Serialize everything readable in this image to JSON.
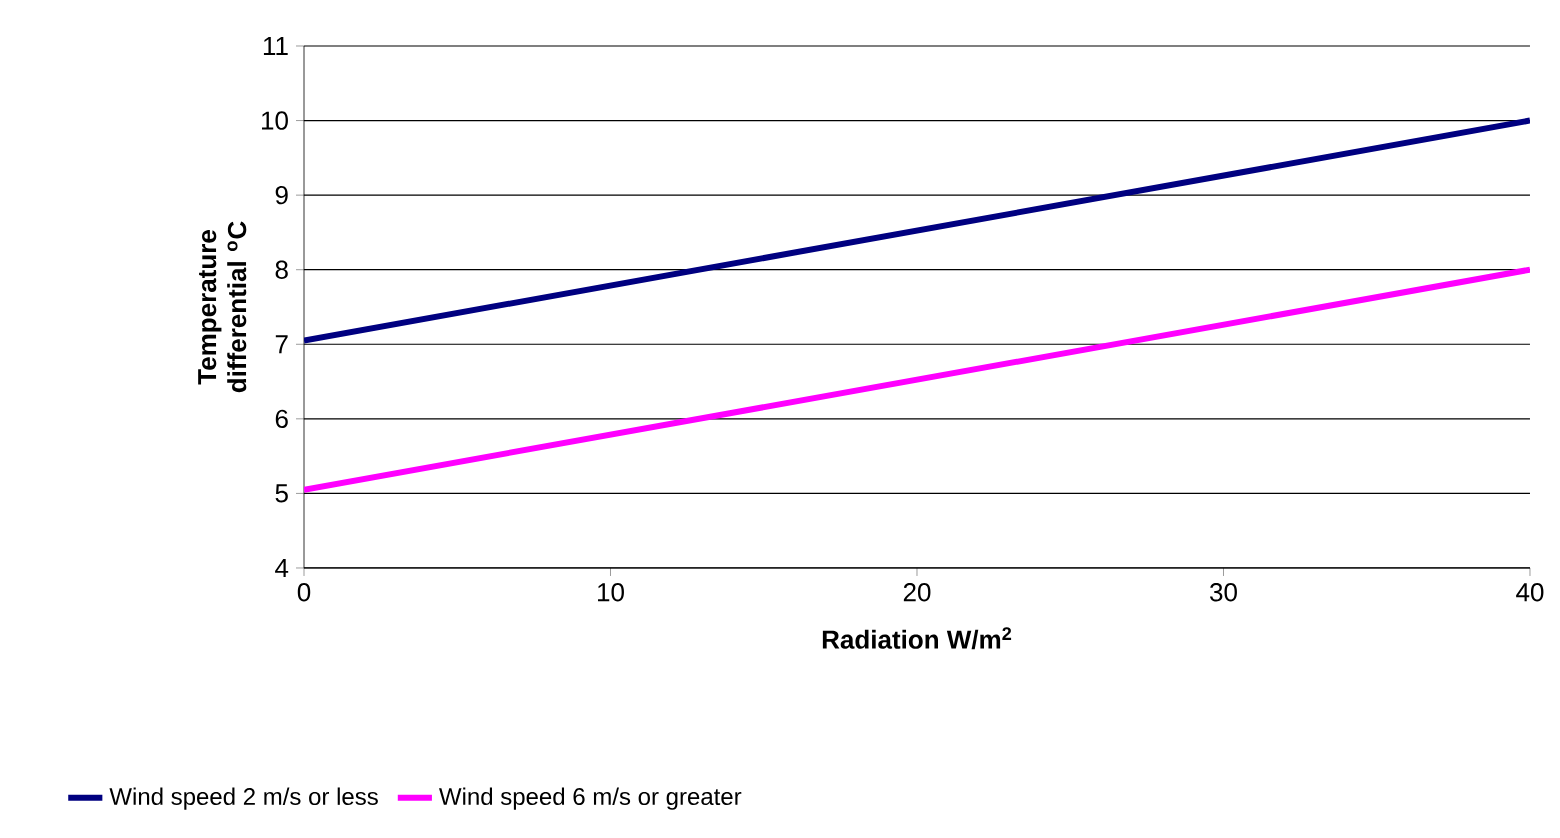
{
  "chart_data": {
    "type": "line",
    "xlabel": "Radiation W/m$^{2}$",
    "ylabel": "Temperature differential $^{o}$C",
    "x": [
      0,
      40
    ],
    "series": [
      {
        "name": "Wind speed 2 m/s or less",
        "color": "#000080",
        "values": [
          7.05,
          10
        ]
      },
      {
        "name": "Wind speed 6 m/s or greater",
        "color": "#ff00ff",
        "values": [
          5.05,
          8
        ]
      }
    ],
    "xlim": [
      0,
      40
    ],
    "xticks": [
      0,
      10,
      20,
      30,
      40
    ],
    "ylim": [
      4,
      11
    ],
    "yticks": [
      4,
      5,
      6,
      7,
      8,
      9,
      10,
      11
    ],
    "grid": "y",
    "legend": "bottom",
    "marker": "none",
    "line_style": "solid"
  }
}
